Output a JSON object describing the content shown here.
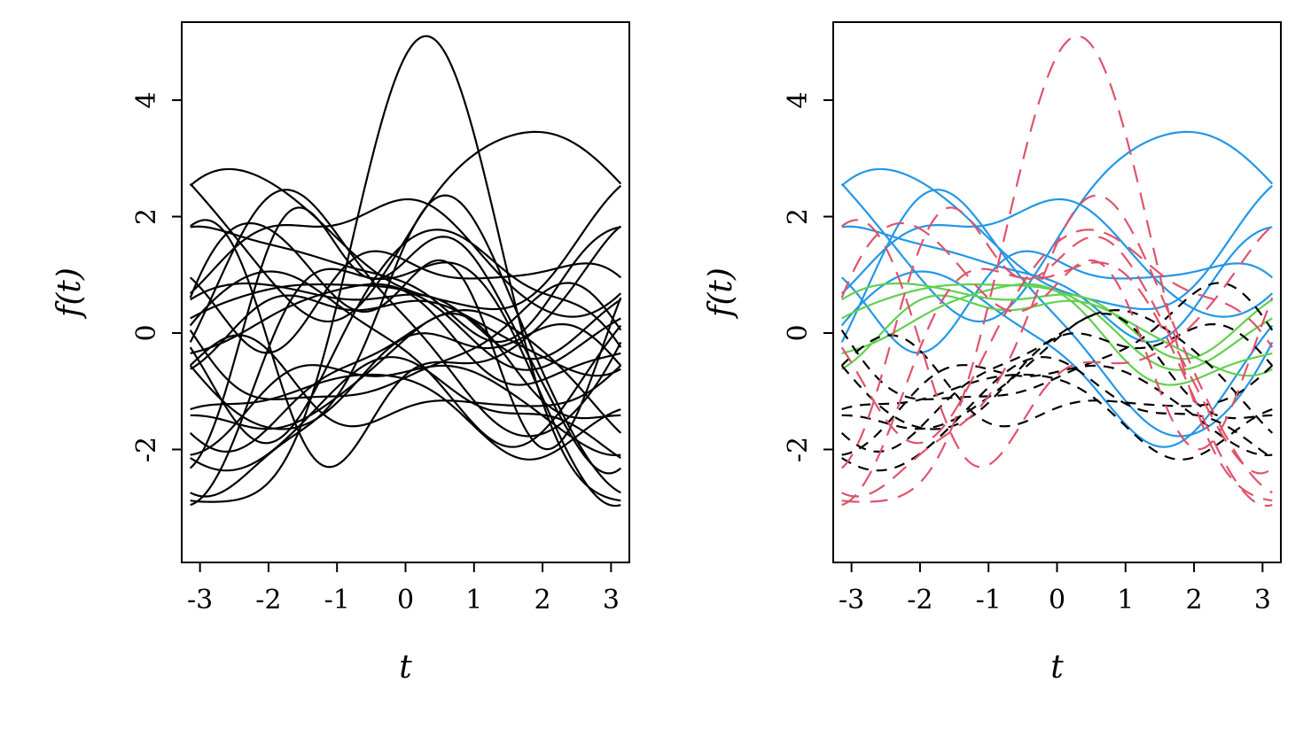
{
  "figure": {
    "background": "#ffffff",
    "panel_count": 2
  },
  "chart_data": {
    "type": "line",
    "title": "",
    "xlabel": "t",
    "ylabel": "f(t)",
    "x_ticks": [
      -3,
      -2,
      -1,
      0,
      1,
      2,
      3
    ],
    "x_tick_labels": [
      "-3",
      "-2",
      "-1",
      "0",
      "1",
      "2",
      "3"
    ],
    "y_ticks": [
      -2,
      0,
      2,
      4
    ],
    "y_tick_labels": [
      "-2",
      "0",
      "2",
      "4"
    ],
    "x_range": [
      -3.1416,
      3.1416
    ],
    "x_range_padded": [
      -3.267,
      3.267
    ],
    "y_range": [
      -3.6,
      5.0
    ],
    "y_range_padded": [
      -3.94,
      5.34
    ],
    "grid": false,
    "legend": "none",
    "axis_color": "#000000",
    "curve_model": "f(t) = c0 + a1*sin(t+p1) + a2*sin(2*t+p2) + a3*sin(3*t+p3); coefficients = [c0,a1,p1,a2,p2,a3,p3]",
    "panels": [
      {
        "name": "all-functions",
        "mode": "all-black",
        "description": "every sampled function drawn as a solid black line"
      },
      {
        "name": "clustered-functions",
        "mode": "grouped",
        "description": "same functions colored and dashed by cluster membership"
      }
    ],
    "groups": [
      {
        "name": "blue-cluster",
        "color": "#2297E6",
        "dash": "",
        "curves": [
          [
            2.0,
            1.6,
            -0.33,
            0.18,
            0.5,
            0.05,
            1.0
          ],
          [
            1.5,
            1.2,
            -2.37,
            0.2,
            0.8,
            0.06,
            -1.0
          ],
          [
            1.4,
            0.9,
            2.2,
            0.3,
            0.3,
            0.08,
            1.5
          ],
          [
            1.0,
            0.8,
            -2.5,
            0.35,
            1.8,
            0.1,
            0.0
          ],
          [
            0.2,
            2.0,
            3.07,
            0.3,
            -0.5,
            0.1,
            0.8
          ],
          [
            0.8,
            0.5,
            0.6,
            0.5,
            2.5,
            0.15,
            -2.0
          ],
          [
            -0.3,
            1.4,
            -2.97,
            0.25,
            1.0,
            0.07,
            0.3
          ]
        ]
      },
      {
        "name": "green-cluster",
        "color": "#61D04F",
        "dash": "",
        "curves": [
          [
            0.3,
            0.7,
            2.8,
            0.2,
            1.2,
            0.05,
            0.0
          ],
          [
            0.1,
            0.6,
            2.2,
            0.25,
            -0.6,
            0.1,
            1.2
          ],
          [
            0.4,
            0.5,
            3.0,
            0.3,
            0.8,
            0.06,
            -0.5
          ],
          [
            0.0,
            0.8,
            2.5,
            0.2,
            2.0,
            0.08,
            0.7
          ]
        ]
      },
      {
        "name": "black-cluster",
        "color": "#000000",
        "dash": "12,9",
        "curves": [
          [
            -0.9,
            0.9,
            1.0,
            0.3,
            0.5,
            0.1,
            -1.5
          ],
          [
            -1.1,
            0.7,
            1.8,
            0.3,
            -1.2,
            0.08,
            0.4
          ],
          [
            -0.6,
            0.8,
            0.2,
            0.35,
            2.2,
            0.1,
            1.0
          ],
          [
            -1.3,
            0.6,
            2.6,
            0.25,
            1.5,
            0.07,
            -0.8
          ],
          [
            -0.4,
            0.9,
            -0.5,
            0.3,
            3.0,
            0.12,
            0.2
          ],
          [
            -1.0,
            0.5,
            -2.0,
            0.4,
            0.2,
            0.1,
            2.0
          ],
          [
            -0.7,
            1.1,
            0.9,
            0.2,
            -2.0,
            0.09,
            -0.3
          ],
          [
            -1.4,
            0.8,
            1.4,
            0.3,
            2.8,
            0.06,
            1.3
          ]
        ]
      },
      {
        "name": "red-cluster",
        "color": "#DF536B",
        "dash": "20,12",
        "curves": [
          [
            0.2,
            4.0,
            1.27,
            0.9,
            0.97,
            0.0,
            0.0
          ],
          [
            -0.6,
            2.4,
            1.03,
            0.5,
            0.0,
            0.15,
            0.6
          ],
          [
            0.3,
            1.8,
            2.0,
            1.0,
            -1.0,
            0.3,
            0.5
          ],
          [
            0.2,
            1.6,
            0.67,
            0.5,
            2.0,
            0.1,
            -1.2
          ],
          [
            -0.2,
            1.5,
            -1.2,
            0.9,
            1.0,
            0.2,
            2.5
          ],
          [
            -0.3,
            2.0,
            1.71,
            0.7,
            -1.29,
            0.1,
            0.0
          ],
          [
            0.4,
            1.2,
            2.9,
            1.1,
            0.3,
            0.2,
            -1.0
          ]
        ]
      }
    ]
  }
}
